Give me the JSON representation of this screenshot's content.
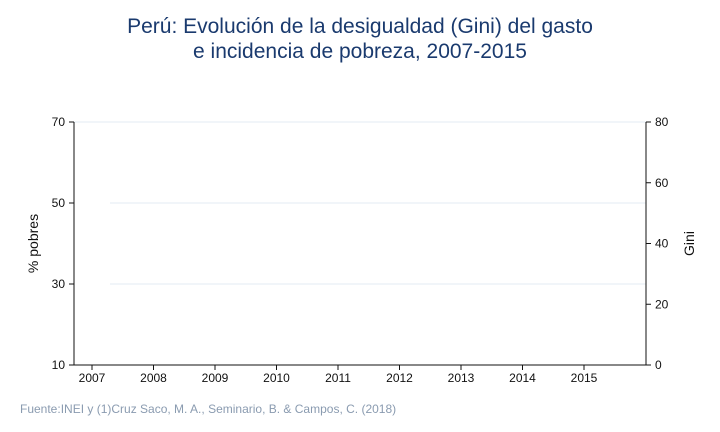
{
  "title_lines": [
    "Perú: Evolución de la desigualdad (Gini) del gasto",
    "e incidencia de pobreza, 2007-2015"
  ],
  "footnote": "Fuente:INEI y (1)Cruz Saco, M. A., Seminario, B. & Campos, C. (2018)",
  "chart_data": {
    "type": "line",
    "title": "Perú: Evolución de la desigualdad (Gini) del gasto e incidencia de pobreza, 2007-2015",
    "x": [
      2007,
      2008,
      2009,
      2010,
      2011,
      2012,
      2013,
      2014,
      2015
    ],
    "xlabel": "",
    "ylabel": "% pobres",
    "y2label": "Gini",
    "ylim": [
      10,
      70
    ],
    "y2lim": [
      0,
      80
    ],
    "yticks": [
      10,
      30,
      50,
      70
    ],
    "y2ticks": [
      0,
      20,
      40,
      60,
      80
    ],
    "series": [],
    "grid": true,
    "colors": {
      "title": "#1a3a6e",
      "grid": "#e3ebf3",
      "axis": "#111111",
      "footnote": "#8a9bb0"
    }
  }
}
